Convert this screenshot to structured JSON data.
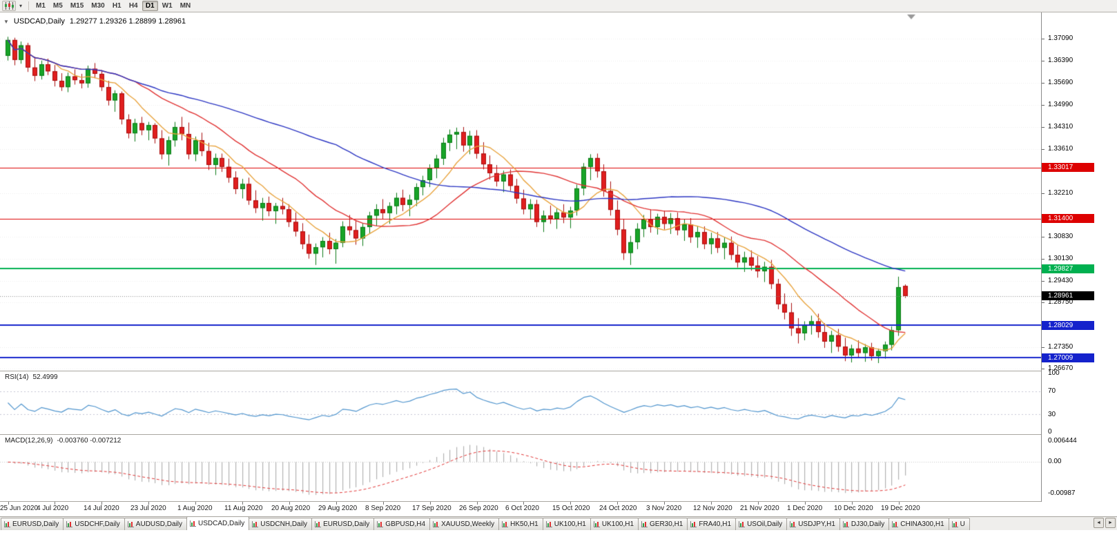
{
  "toolbar": {
    "timeframes": [
      "M1",
      "M5",
      "M15",
      "M30",
      "H1",
      "H4",
      "D1",
      "W1",
      "MN"
    ],
    "active_timeframe": "D1"
  },
  "chart": {
    "symbol_label": "USDCAD,Daily",
    "ohlc": "1.29277 1.29326 1.28899 1.28961",
    "collapse_icon": "▼",
    "scale": {
      "top": 1.3792,
      "bottom": 1.266
    },
    "price_axis": {
      "labels": [
        "1.37090",
        "1.36390",
        "1.35690",
        "1.34990",
        "1.34310",
        "1.33610",
        "1.32210",
        "1.30830",
        "1.30130",
        "1.29430",
        "1.28750",
        "1.27350",
        "1.26670"
      ]
    },
    "hlines": [
      {
        "label": "1.33017",
        "color": "#dd0000",
        "width": 1
      },
      {
        "label": "1.31400",
        "color": "#dd0000",
        "width": 1
      },
      {
        "label": "1.29827",
        "color": "#00b050",
        "width": 2
      },
      {
        "label": "1.28029",
        "color": "#1422cc",
        "width": 2
      },
      {
        "label": "1.27009",
        "color": "#1422cc",
        "width": 2
      }
    ],
    "current_price": {
      "label": "1.28961",
      "color": "#000000"
    },
    "date_labels": [
      "25 Jun 2020",
      "4 Jul 2020",
      "14 Jul 2020",
      "23 Jul 2020",
      "1 Aug 2020",
      "11 Aug 2020",
      "20 Aug 2020",
      "29 Aug 2020",
      "8 Sep 2020",
      "17 Sep 2020",
      "26 Sep 2020",
      "6 Oct 2020",
      "15 Oct 2020",
      "24 Oct 2020",
      "3 Nov 2020",
      "12 Nov 2020",
      "21 Nov 2020",
      "1 Dec 2020",
      "10 Dec 2020",
      "19 Dec 2020"
    ],
    "colors": {
      "up": "#18a428",
      "up_border": "#0b7a16",
      "down": "#e01f1f",
      "down_border": "#a80e0e",
      "ma_fast": "#e8a33d",
      "ma_mid": "#e03333",
      "ma_slow": "#2b35c2",
      "macd_hist": "#b2b2b2",
      "macd_signal": "#e03333"
    },
    "candles": [
      [
        1.3655,
        1.3715,
        1.364,
        1.3705
      ],
      [
        1.3705,
        1.3712,
        1.3625,
        1.3642
      ],
      [
        1.3642,
        1.37,
        1.363,
        1.3688
      ],
      [
        1.3688,
        1.3696,
        1.3604,
        1.3618
      ],
      [
        1.3618,
        1.3652,
        1.3575,
        1.3592
      ],
      [
        1.3592,
        1.364,
        1.358,
        1.3628
      ],
      [
        1.3628,
        1.3646,
        1.3594,
        1.3606
      ],
      [
        1.3606,
        1.3626,
        1.3558,
        1.3576
      ],
      [
        1.3576,
        1.36,
        1.3544,
        1.3556
      ],
      [
        1.3556,
        1.3602,
        1.354,
        1.359
      ],
      [
        1.359,
        1.3612,
        1.3564,
        1.3578
      ],
      [
        1.3578,
        1.3598,
        1.3552,
        1.3568
      ],
      [
        1.3568,
        1.3624,
        1.3554,
        1.3614
      ],
      [
        1.3614,
        1.3632,
        1.3584,
        1.3598
      ],
      [
        1.3598,
        1.361,
        1.3544,
        1.3556
      ],
      [
        1.3556,
        1.3576,
        1.3498,
        1.3514
      ],
      [
        1.3514,
        1.3546,
        1.3478,
        1.3536
      ],
      [
        1.3536,
        1.3542,
        1.3438,
        1.3454
      ],
      [
        1.3454,
        1.347,
        1.3394,
        1.341
      ],
      [
        1.341,
        1.3456,
        1.3384,
        1.3442
      ],
      [
        1.3442,
        1.3462,
        1.3404,
        1.342
      ],
      [
        1.342,
        1.3446,
        1.3388,
        1.3436
      ],
      [
        1.3436,
        1.3442,
        1.3378,
        1.3394
      ],
      [
        1.3394,
        1.342,
        1.3328,
        1.3344
      ],
      [
        1.3344,
        1.34,
        1.3308,
        1.3388
      ],
      [
        1.3388,
        1.3446,
        1.3368,
        1.343
      ],
      [
        1.343,
        1.3462,
        1.3388,
        1.3408
      ],
      [
        1.3408,
        1.3444,
        1.3328,
        1.3344
      ],
      [
        1.3344,
        1.34,
        1.3322,
        1.3388
      ],
      [
        1.3388,
        1.3412,
        1.3338,
        1.3354
      ],
      [
        1.3354,
        1.338,
        1.3294,
        1.331
      ],
      [
        1.331,
        1.3346,
        1.3278,
        1.3332
      ],
      [
        1.3332,
        1.3346,
        1.3288,
        1.3304
      ],
      [
        1.3304,
        1.333,
        1.3254,
        1.327
      ],
      [
        1.327,
        1.329,
        1.3218,
        1.3234
      ],
      [
        1.3234,
        1.3266,
        1.3204,
        1.325
      ],
      [
        1.325,
        1.327,
        1.3184,
        1.3198
      ],
      [
        1.3198,
        1.323,
        1.3158,
        1.3174
      ],
      [
        1.3174,
        1.3206,
        1.3134,
        1.319
      ],
      [
        1.319,
        1.321,
        1.3148,
        1.3164
      ],
      [
        1.3164,
        1.319,
        1.3124,
        1.318
      ],
      [
        1.318,
        1.3206,
        1.3154,
        1.317
      ],
      [
        1.317,
        1.3186,
        1.3114,
        1.313
      ],
      [
        1.313,
        1.316,
        1.3084,
        1.31
      ],
      [
        1.31,
        1.3126,
        1.3044,
        1.306
      ],
      [
        1.306,
        1.309,
        1.3014,
        1.303
      ],
      [
        1.303,
        1.3062,
        1.2994,
        1.305
      ],
      [
        1.305,
        1.3082,
        1.3018,
        1.307
      ],
      [
        1.307,
        1.3096,
        1.3028,
        1.3044
      ],
      [
        1.3044,
        1.3076,
        1.2998,
        1.3064
      ],
      [
        1.3064,
        1.3132,
        1.305,
        1.3116
      ],
      [
        1.3116,
        1.3152,
        1.3088,
        1.3104
      ],
      [
        1.3104,
        1.3136,
        1.3058,
        1.3078
      ],
      [
        1.3078,
        1.3126,
        1.3054,
        1.3114
      ],
      [
        1.3114,
        1.3162,
        1.3094,
        1.315
      ],
      [
        1.315,
        1.3186,
        1.3118,
        1.317
      ],
      [
        1.317,
        1.3202,
        1.3138,
        1.3158
      ],
      [
        1.3158,
        1.3192,
        1.3124,
        1.318
      ],
      [
        1.318,
        1.3222,
        1.3154,
        1.3206
      ],
      [
        1.3206,
        1.3232,
        1.3164,
        1.3184
      ],
      [
        1.3184,
        1.3216,
        1.3148,
        1.32
      ],
      [
        1.32,
        1.3252,
        1.318,
        1.324
      ],
      [
        1.324,
        1.3276,
        1.3214,
        1.3262
      ],
      [
        1.3262,
        1.3312,
        1.324,
        1.33
      ],
      [
        1.33,
        1.3342,
        1.3268,
        1.333
      ],
      [
        1.333,
        1.3396,
        1.331,
        1.338
      ],
      [
        1.338,
        1.3422,
        1.3354,
        1.3406
      ],
      [
        1.3406,
        1.3428,
        1.336,
        1.3414
      ],
      [
        1.3414,
        1.343,
        1.3352,
        1.3372
      ],
      [
        1.3372,
        1.3418,
        1.3344,
        1.3402
      ],
      [
        1.3402,
        1.342,
        1.333,
        1.3346
      ],
      [
        1.3346,
        1.3382,
        1.3296,
        1.3312
      ],
      [
        1.3312,
        1.334,
        1.3264,
        1.3284
      ],
      [
        1.3284,
        1.331,
        1.3242,
        1.3258
      ],
      [
        1.3258,
        1.3292,
        1.3224,
        1.328
      ],
      [
        1.328,
        1.3296,
        1.3228,
        1.3244
      ],
      [
        1.3244,
        1.3266,
        1.3188,
        1.3204
      ],
      [
        1.3204,
        1.3232,
        1.3154,
        1.317
      ],
      [
        1.317,
        1.3202,
        1.3138,
        1.3186
      ],
      [
        1.3186,
        1.32,
        1.3114,
        1.313
      ],
      [
        1.313,
        1.3166,
        1.3098,
        1.315
      ],
      [
        1.315,
        1.3182,
        1.3124,
        1.314
      ],
      [
        1.314,
        1.3172,
        1.3108,
        1.316
      ],
      [
        1.316,
        1.3186,
        1.3126,
        1.3144
      ],
      [
        1.3144,
        1.3178,
        1.311,
        1.3166
      ],
      [
        1.3166,
        1.3248,
        1.315,
        1.3236
      ],
      [
        1.3236,
        1.3316,
        1.3214,
        1.3304
      ],
      [
        1.3304,
        1.3344,
        1.3262,
        1.3332
      ],
      [
        1.3332,
        1.3346,
        1.327,
        1.329
      ],
      [
        1.329,
        1.3312,
        1.321,
        1.3228
      ],
      [
        1.3228,
        1.3258,
        1.315,
        1.3168
      ],
      [
        1.3168,
        1.3198,
        1.3088,
        1.3106
      ],
      [
        1.3106,
        1.314,
        1.301,
        1.3032
      ],
      [
        1.3032,
        1.3086,
        1.2994,
        1.3066
      ],
      [
        1.3066,
        1.3126,
        1.3044,
        1.3108
      ],
      [
        1.3108,
        1.3152,
        1.3082,
        1.3138
      ],
      [
        1.3138,
        1.317,
        1.3096,
        1.3114
      ],
      [
        1.3114,
        1.3156,
        1.309,
        1.3146
      ],
      [
        1.3146,
        1.3166,
        1.3106,
        1.3124
      ],
      [
        1.3124,
        1.3158,
        1.3092,
        1.3142
      ],
      [
        1.3142,
        1.316,
        1.3088,
        1.3104
      ],
      [
        1.3104,
        1.3138,
        1.307,
        1.3122
      ],
      [
        1.3122,
        1.3142,
        1.3064,
        1.3082
      ],
      [
        1.3082,
        1.3118,
        1.3048,
        1.3098
      ],
      [
        1.3098,
        1.3116,
        1.3044,
        1.306
      ],
      [
        1.306,
        1.3096,
        1.3028,
        1.3078
      ],
      [
        1.3078,
        1.3098,
        1.3032,
        1.3048
      ],
      [
        1.3048,
        1.3082,
        1.3012,
        1.3064
      ],
      [
        1.3064,
        1.3084,
        1.301,
        1.3026
      ],
      [
        1.3026,
        1.3056,
        1.2986,
        1.3002
      ],
      [
        1.3002,
        1.3036,
        1.2972,
        1.3018
      ],
      [
        1.3018,
        1.304,
        1.2976,
        1.2992
      ],
      [
        1.2992,
        1.3022,
        1.2954,
        1.2974
      ],
      [
        1.2974,
        1.3004,
        1.294,
        1.2988
      ],
      [
        1.2988,
        1.301,
        1.2918,
        1.2934
      ],
      [
        1.2934,
        1.295,
        1.2854,
        1.287
      ],
      [
        1.287,
        1.2904,
        1.2822,
        1.2844
      ],
      [
        1.2844,
        1.2874,
        1.277,
        1.2794
      ],
      [
        1.2794,
        1.2826,
        1.2746,
        1.2778
      ],
      [
        1.2778,
        1.2816,
        1.2756,
        1.2804
      ],
      [
        1.2804,
        1.2834,
        1.2774,
        1.2816
      ],
      [
        1.2816,
        1.284,
        1.2764,
        1.2782
      ],
      [
        1.2782,
        1.281,
        1.2732,
        1.2752
      ],
      [
        1.2752,
        1.2786,
        1.2716,
        1.2772
      ],
      [
        1.2772,
        1.2792,
        1.272,
        1.2736
      ],
      [
        1.2736,
        1.2764,
        1.269,
        1.2708
      ],
      [
        1.2708,
        1.2742,
        1.2686,
        1.273
      ],
      [
        1.273,
        1.2756,
        1.27,
        1.2716
      ],
      [
        1.2716,
        1.2744,
        1.2688,
        1.2734
      ],
      [
        1.2734,
        1.2748,
        1.2692,
        1.2706
      ],
      [
        1.2706,
        1.273,
        1.2684,
        1.2722
      ],
      [
        1.2722,
        1.2752,
        1.2698,
        1.2742
      ],
      [
        1.2742,
        1.28,
        1.2724,
        1.2788
      ],
      [
        1.2788,
        1.2957,
        1.277,
        1.2924
      ],
      [
        1.29277,
        1.29326,
        1.28899,
        1.28961
      ]
    ]
  },
  "rsi": {
    "label": "RSI(14)",
    "value": "52.4999",
    "levels": [
      "100",
      "70",
      "30",
      "0"
    ],
    "color": "#4f94cd"
  },
  "macd": {
    "label": "MACD(12,26,9)",
    "values": "-0.003760 -0.007212",
    "axis": [
      "0.006444",
      "0.00",
      "-0.00987"
    ]
  },
  "tabs": {
    "items": [
      "EURUSD,Daily",
      "USDCHF,Daily",
      "AUDUSD,Daily",
      "USDCAD,Daily",
      "USDCNH,Daily",
      "EURUSD,Daily",
      "GBPUSD,H4",
      "XAUUSD,Weekly",
      "HK50,H1",
      "UK100,H1",
      "UK100,H1",
      "GER30,H1",
      "FRA40,H1",
      "USOil,Daily",
      "USDJPY,H1",
      "DJ30,Daily",
      "CHINA300,H1",
      "U"
    ],
    "active_index": 3,
    "scroll_left": "◄",
    "scroll_right": "►"
  }
}
